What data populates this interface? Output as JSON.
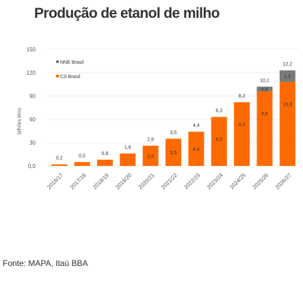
{
  "title": "Produção de etanol de milho",
  "source": "Fonte: MAPA, Itaú BBA",
  "colors": {
    "nne": "#7a7a7a",
    "cs": "#ff6a00",
    "grid": "#cfcfcf",
    "text": "#333333"
  },
  "chart_data": {
    "type": "bar",
    "stacked": true,
    "ylabel": "bilhões litros",
    "ylim": [
      0,
      150
    ],
    "yticks": [
      "0,0",
      "30",
      "60",
      "90",
      "120",
      "150"
    ],
    "grid": true,
    "legend_position": "top-left",
    "categories": [
      "2016/17",
      "2017/18",
      "2018/19",
      "2019/20",
      "2020/21",
      "2021/22",
      "2022/23",
      "2023/24",
      "2024/25",
      "2025/26",
      "2026/27"
    ],
    "series": [
      {
        "name": "CS Brasil",
        "values": [
          0.2,
          0.5,
          0.8,
          1.6,
          2.6,
          3.5,
          4.4,
          6.3,
          8.2,
          9.6,
          10.8
        ],
        "labels": [
          "",
          "",
          "",
          "",
          "2,6",
          "3,5",
          "4,4",
          "6,3",
          "8,2",
          "9,6",
          "10,8"
        ]
      },
      {
        "name": "NNE Brasil",
        "values": [
          0,
          0,
          0,
          0,
          0,
          0,
          0,
          0,
          0,
          0.6,
          1.5
        ],
        "labels": [
          "",
          "",
          "",
          "",
          "",
          "",
          "",
          "",
          "",
          "0,6",
          "1,5"
        ]
      }
    ],
    "totals": [
      "0,2",
      "0,5",
      "0,8",
      "1,6",
      "2,6",
      "3,5",
      "4,4",
      "6,3",
      "8,2",
      "10,1",
      "12,2"
    ]
  }
}
